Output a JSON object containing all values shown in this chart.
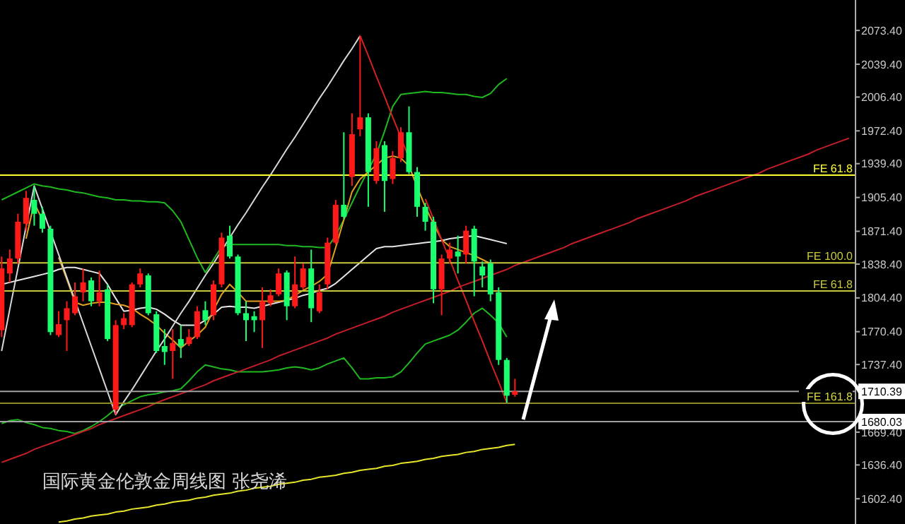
{
  "chart_data": {
    "type": "candlestick",
    "title": "国际黄金伦敦金周线图 张尧浠",
    "categories": [
      null,
      null,
      null,
      null,
      null,
      null,
      null,
      null,
      null,
      null,
      null,
      null,
      null,
      null,
      null,
      null,
      null,
      null,
      null,
      null,
      null,
      null,
      null,
      null,
      null,
      null,
      null,
      null,
      null,
      null,
      null,
      null,
      null,
      null,
      null,
      null,
      null,
      null,
      null,
      null,
      null,
      null,
      null,
      null,
      null,
      null,
      null,
      null,
      null,
      null,
      null,
      null,
      null,
      null,
      null,
      null,
      null,
      null,
      null,
      null,
      null,
      null,
      null,
      null,
      null,
      null,
      null,
      null,
      null,
      null,
      null,
      null,
      null,
      null,
      null,
      null,
      null,
      null,
      null,
      null,
      null,
      null,
      null,
      null,
      null,
      null,
      null,
      null,
      null,
      null,
      null,
      null,
      null,
      null,
      null,
      null,
      null,
      null,
      null,
      null,
      null,
      null,
      null,
      null,
      null
    ],
    "ohlc": [
      [
        1772,
        1846,
        1765,
        1834
      ],
      [
        1829,
        1853,
        1820,
        1844
      ],
      [
        1844,
        1889,
        1839,
        1881
      ],
      [
        1879,
        1912,
        1872,
        1905
      ],
      [
        1903,
        1917,
        1877,
        1889
      ],
      [
        1889,
        1896,
        1870,
        1874
      ],
      [
        1874,
        1877,
        1767,
        1770
      ],
      [
        1767,
        1791,
        1765,
        1778
      ],
      [
        1782,
        1801,
        1751,
        1794
      ],
      [
        1789,
        1820,
        1787,
        1806
      ],
      [
        1810,
        1834,
        1801,
        1820
      ],
      [
        1822,
        1825,
        1796,
        1801
      ],
      [
        1801,
        1832,
        1796,
        1810
      ],
      [
        1813,
        1818,
        1761,
        1763
      ],
      [
        1692,
        1782,
        1687,
        1777
      ],
      [
        1777,
        1789,
        1773,
        1784
      ],
      [
        1777,
        1820,
        1775,
        1818
      ],
      [
        1818,
        1834,
        1815,
        1829
      ],
      [
        1827,
        1829,
        1787,
        1789
      ],
      [
        1788,
        1791,
        1749,
        1751
      ],
      [
        1756,
        1773,
        1737,
        1750
      ],
      [
        1751,
        1773,
        1723,
        1759
      ],
      [
        1763,
        1777,
        1744,
        1756
      ],
      [
        1758,
        1773,
        1756,
        1765
      ],
      [
        1765,
        1796,
        1763,
        1791
      ],
      [
        1792,
        1801,
        1777,
        1782
      ],
      [
        1787,
        1822,
        1782,
        1818
      ],
      [
        1818,
        1870,
        1815,
        1865
      ],
      [
        1867,
        1877,
        1844,
        1846
      ],
      [
        1846,
        1848,
        1787,
        1789
      ],
      [
        1789,
        1801,
        1761,
        1782
      ],
      [
        1786,
        1791,
        1770,
        1782
      ],
      [
        1782,
        1815,
        1754,
        1801
      ],
      [
        1799,
        1813,
        1796,
        1807
      ],
      [
        1808,
        1834,
        1806,
        1829
      ],
      [
        1830,
        1832,
        1782,
        1796
      ],
      [
        1796,
        1846,
        1794,
        1818
      ],
      [
        1815,
        1839,
        1813,
        1834
      ],
      [
        1834,
        1853,
        1780,
        1794
      ],
      [
        1791,
        1818,
        1789,
        1810
      ],
      [
        1818,
        1865,
        1813,
        1860
      ],
      [
        1860,
        1903,
        1858,
        1898
      ],
      [
        1898,
        1971,
        1884,
        1886
      ],
      [
        1926,
        1990,
        1917,
        1969
      ],
      [
        1974,
        2068,
        1967,
        1986
      ],
      [
        1986,
        1990,
        1896,
        1931
      ],
      [
        1922,
        1962,
        1919,
        1955
      ],
      [
        1958,
        1962,
        1891,
        1922
      ],
      [
        1924,
        1952,
        1919,
        1945
      ],
      [
        1945,
        1976,
        1941,
        1971
      ],
      [
        1971,
        1997,
        1929,
        1931
      ],
      [
        1931,
        1936,
        1886,
        1896
      ],
      [
        1896,
        1900,
        1872,
        1881
      ],
      [
        1881,
        1886,
        1799,
        1813
      ],
      [
        1813,
        1848,
        1787,
        1844
      ],
      [
        1844,
        1860,
        1839,
        1853
      ],
      [
        1851,
        1867,
        1829,
        1846
      ],
      [
        1848,
        1877,
        1839,
        1872
      ],
      [
        1874,
        1877,
        1806,
        1841
      ],
      [
        1836,
        1841,
        1815,
        1827
      ],
      [
        1839,
        1843,
        1801,
        1808
      ],
      [
        1810,
        1815,
        1737,
        1742
      ],
      [
        1742,
        1744,
        1699,
        1706
      ],
      [
        1707,
        1723,
        1705,
        1710.39
      ],
      null,
      null,
      null,
      null,
      null,
      null,
      null,
      null,
      null,
      null,
      null,
      null,
      null,
      null,
      null,
      null,
      null,
      null,
      null,
      null,
      null,
      null,
      null,
      null,
      null,
      null,
      null,
      null,
      null,
      null,
      null,
      null,
      null,
      null,
      null,
      null,
      null,
      null,
      null,
      null,
      null
    ],
    "colors": [
      "#ff1a1a",
      "#ff1a1a",
      "#ff1a1a",
      "#ff1a1a",
      "#1aff6e",
      "#1aff6e",
      "#1aff6e",
      "#ff1a1a",
      "#ff1a1a",
      "#ff1a1a",
      "#ff1a1a",
      "#1aff6e",
      "#ff1a1a",
      "#1aff6e",
      "#ff1a1a",
      "#ff1a1a",
      "#ff1a1a",
      "#ff1a1a",
      "#1aff6e",
      "#1aff6e",
      "#1aff6e",
      "#ff1a1a",
      "#1aff6e",
      "#ff1a1a",
      "#ff1a1a",
      "#1aff6e",
      "#ff1a1a",
      "#ff1a1a",
      "#1aff6e",
      "#1aff6e",
      "#1aff6e",
      "#1aff6e",
      "#ff1a1a",
      "#ff1a1a",
      "#ff1a1a",
      "#1aff6e",
      "#ff1a1a",
      "#ff1a1a",
      "#1aff6e",
      "#ff1a1a",
      "#ff1a1a",
      "#ff1a1a",
      "#1aff6e",
      "#ff1a1a",
      "#ff1a1a",
      "#1aff6e",
      "#ff1a1a",
      "#1aff6e",
      "#ff1a1a",
      "#ff1a1a",
      "#1aff6e",
      "#1aff6e",
      "#1aff6e",
      "#1aff6e",
      "#ff1a1a",
      "#ff1a1a",
      "#1aff6e",
      "#ff1a1a",
      "#1aff6e",
      "#1aff6e",
      "#1aff6e",
      "#1aff6e",
      "#1aff6e",
      "#ff1a1a",
      null,
      null,
      null,
      null,
      null,
      null,
      null,
      null,
      null,
      null,
      null,
      null,
      null,
      null,
      null,
      null,
      null,
      null,
      null,
      null,
      null,
      null,
      null,
      null,
      null,
      null,
      null,
      null,
      null,
      null,
      null,
      null,
      null,
      null,
      null,
      null,
      null,
      null,
      null,
      null,
      null
    ],
    "series": [
      {
        "type": "line",
        "color": "#1fb81f",
        "values": [
          1903,
          1907,
          1911,
          1915,
          1919,
          1917,
          1916,
          1914,
          1913,
          1911,
          1910,
          1908,
          1906,
          1905,
          1903,
          1903,
          1902,
          1902,
          1901,
          1901,
          1900,
          1892,
          1881,
          1863,
          1845,
          1830,
          1843,
          1856,
          1858,
          1858,
          1858,
          1858,
          1858,
          1858,
          1858,
          1857,
          1857,
          1856,
          1856,
          1855,
          1855,
          1867,
          1883,
          1900,
          1917,
          1933,
          1949,
          1972,
          1997,
          2009,
          2010,
          2011,
          2012,
          2011,
          2011,
          2010,
          2009,
          2009,
          2007,
          2006,
          2010,
          2019,
          2025,
          null,
          null,
          null,
          null,
          null,
          null,
          null,
          null,
          null,
          null,
          null,
          null,
          null,
          null,
          null,
          null,
          null,
          null,
          null,
          null,
          null,
          null,
          null,
          null,
          null,
          null,
          null,
          null,
          null,
          null,
          null,
          null,
          null,
          null,
          null,
          null,
          null,
          null,
          null,
          null,
          null,
          null
        ]
      },
      {
        "type": "line",
        "color": "#1fb81f",
        "values": [
          1678,
          1681,
          1682,
          1679,
          1677,
          1674,
          1673,
          1671,
          1670,
          1668,
          1671,
          1675,
          1680,
          1686,
          1693,
          1697,
          1701,
          1705,
          1707,
          1708,
          1710,
          1711,
          1713,
          1721,
          1730,
          1737,
          1735,
          1733,
          1732,
          1730,
          1730,
          1730,
          1730,
          1731,
          1732,
          1734,
          1735,
          1734,
          1732,
          1734,
          1738,
          1741,
          1744,
          1734,
          1723,
          1723,
          1724,
          1724,
          1725,
          1730,
          1739,
          1749,
          1758,
          1761,
          1764,
          1767,
          1772,
          1780,
          1789,
          1794,
          1787,
          1779,
          1765,
          null,
          null,
          null,
          null,
          null,
          null,
          null,
          null,
          null,
          null,
          null,
          null,
          null,
          null,
          null,
          null,
          null,
          null,
          null,
          null,
          null,
          null,
          null,
          null,
          null,
          null,
          null,
          null,
          null,
          null,
          null,
          null,
          null,
          null,
          null,
          null,
          null,
          null,
          null,
          null,
          null,
          null
        ]
      },
      {
        "type": "line",
        "color": "#e6e6e6",
        "values": [
          1818,
          1820,
          1822,
          1824,
          1826,
          1828,
          1830,
          1833,
          1835,
          1835,
          1833,
          1831,
          1829,
          1818,
          1804,
          1791,
          1792,
          1794,
          1795,
          1793,
          1788,
          1782,
          1777,
          1777,
          1777,
          1782,
          1788,
          1795,
          1796,
          1795,
          1795,
          1794,
          1796,
          1798,
          1800,
          1802,
          1804,
          1807,
          1809,
          1812,
          1814,
          1819,
          1826,
          1833,
          1840,
          1847,
          1854,
          1856,
          1856,
          1857,
          1858,
          1859,
          1860,
          1861,
          1862,
          1864,
          1865,
          1866,
          1867,
          1865,
          1863,
          1861,
          1859,
          null,
          null,
          null,
          null,
          null,
          null,
          null,
          null,
          null,
          null,
          null,
          null,
          null,
          null,
          null,
          null,
          null,
          null,
          null,
          null,
          null,
          null,
          null,
          null,
          null,
          null,
          null,
          null,
          null,
          null,
          null,
          null,
          null,
          null,
          null,
          null,
          null,
          null,
          null,
          null,
          null,
          null
        ]
      },
      {
        "type": "line",
        "color": "#e0a020",
        "values": [
          null,
          null,
          null,
          1864,
          1900,
          1883,
          null,
          1845,
          1823,
          1800,
          1797,
          1799,
          1800,
          1800,
          1798,
          1797,
          1794,
          1788,
          1783,
          1777,
          1769,
          1762,
          1754,
          1761,
          1767,
          1775,
          1792,
          1808,
          1818,
          1810,
          1801,
          1801,
          1801,
          1801,
          1801,
          1802,
          1807,
          1812,
          1816,
          1821,
          1828,
          1855,
          1883,
          1911,
          1924,
          1931,
          1938,
          1945,
          1947,
          1945,
          1937,
          1916,
          1896,
          1879,
          1863,
          1856,
          1853,
          1850,
          1847,
          1843,
          1839,
          null,
          null,
          null,
          null,
          null,
          null,
          null,
          null,
          null,
          null,
          null,
          null,
          null,
          null,
          null,
          null,
          null,
          null,
          null,
          null,
          null,
          null,
          null,
          null,
          null,
          null,
          null,
          null,
          null,
          null,
          null,
          null,
          null,
          null,
          null,
          null,
          null,
          null,
          null,
          null,
          null,
          null,
          null,
          null
        ]
      },
      {
        "type": "line",
        "color": "#e6e62a",
        "values": [
          null,
          null,
          null,
          null,
          null,
          null,
          null,
          1579,
          1580,
          1582,
          1583,
          1585,
          1586,
          1587,
          1589,
          1590,
          1592,
          1593,
          1594,
          1596,
          1597,
          1599,
          1600,
          1601,
          1603,
          1604,
          1606,
          1607,
          1608,
          1610,
          1611,
          1613,
          1614,
          1615,
          1617,
          1618,
          1619,
          1621,
          1622,
          1624,
          1625,
          1626,
          1628,
          1629,
          1631,
          1632,
          1633,
          1635,
          1636,
          1638,
          1639,
          1640,
          1642,
          1643,
          1645,
          1646,
          1647,
          1649,
          1650,
          1652,
          1653,
          1654,
          1656,
          1657,
          null,
          null,
          null,
          null,
          null,
          null,
          null,
          null,
          null,
          null,
          null,
          null,
          null,
          null,
          null,
          null,
          null,
          null,
          null,
          null,
          null,
          null,
          null,
          null,
          null,
          null,
          null,
          null,
          null,
          null,
          null,
          null,
          null,
          null,
          null,
          null,
          null,
          null,
          null,
          null,
          null
        ]
      },
      {
        "type": "line",
        "color": "#c41e2a",
        "values": [
          1639,
          1642,
          1645,
          1648,
          1652,
          1655,
          1658,
          1661,
          1664,
          1667,
          1670,
          1673,
          1677,
          1680,
          1683,
          1686,
          1689,
          1692,
          1695,
          1699,
          1702,
          1705,
          1708,
          1711,
          1714,
          1717,
          1721,
          1724,
          1727,
          1730,
          1733,
          1736,
          1739,
          1742,
          1746,
          1749,
          1752,
          1755,
          1758,
          1761,
          1764,
          1768,
          1771,
          1774,
          1777,
          1780,
          1783,
          1786,
          1790,
          1793,
          1796,
          1799,
          1802,
          1805,
          1808,
          1811,
          1815,
          1818,
          1821,
          1824,
          1827,
          1830,
          1833,
          1837,
          1840,
          1843,
          1846,
          1849,
          1852,
          1855,
          1859,
          1862,
          1865,
          1868,
          1871,
          1874,
          1877,
          1880,
          1884,
          1887,
          1890,
          1893,
          1896,
          1899,
          1902,
          1906,
          1909,
          1912,
          1915,
          1918,
          1921,
          1924,
          1927,
          1930,
          1934,
          1937,
          1940,
          1943,
          1946,
          1949,
          1953,
          1956,
          1959,
          1962,
          1965
        ]
      },
      {
        "type": "line",
        "color": "#d8d8d8",
        "values": [
          1751,
          1793,
          1834,
          1876,
          1917,
          1894,
          1871,
          1848,
          1825,
          1802,
          1779,
          1756,
          1733,
          1710,
          1687,
          1700,
          1712,
          1725,
          1738,
          1751,
          1763,
          1776,
          1789,
          1801,
          1814,
          1827,
          1839,
          1852,
          1865,
          1878,
          1890,
          1903,
          1916,
          1928,
          1941,
          1954,
          1966,
          1979,
          1992,
          2005,
          2017,
          2030,
          2043,
          2055,
          2068,
          null,
          null,
          null,
          null,
          null,
          null,
          null,
          null,
          null,
          null,
          null,
          null,
          null,
          null,
          null,
          null,
          null,
          null,
          null,
          null,
          null,
          null,
          null,
          null,
          null,
          null,
          null,
          null,
          null,
          null,
          null,
          null,
          null,
          null,
          null,
          null,
          null,
          null,
          null,
          null,
          null,
          null,
          null,
          null,
          null,
          null,
          null,
          null,
          null,
          null,
          null,
          null,
          null,
          null,
          null,
          null,
          null,
          null,
          null,
          null
        ]
      },
      {
        "type": "line",
        "color": "#d42020",
        "values": [
          null,
          null,
          null,
          null,
          null,
          null,
          null,
          null,
          null,
          null,
          null,
          null,
          null,
          null,
          null,
          null,
          null,
          null,
          null,
          null,
          null,
          null,
          null,
          null,
          null,
          null,
          null,
          null,
          null,
          null,
          null,
          null,
          null,
          null,
          null,
          null,
          null,
          null,
          null,
          null,
          null,
          null,
          null,
          null,
          2068,
          2048,
          2027,
          2007,
          1986,
          1966,
          1945,
          null,
          1904,
          1884,
          1863,
          1843,
          1822,
          1802,
          1781,
          1761,
          1740,
          1720,
          1699,
          null,
          null,
          null,
          null,
          null,
          null,
          null,
          null,
          null,
          null,
          null,
          null,
          null,
          null,
          null,
          null,
          null,
          null,
          null,
          null,
          null,
          null,
          null,
          null,
          null,
          null,
          null,
          null,
          null,
          null,
          null,
          null,
          null,
          null,
          null,
          null,
          null,
          null,
          null,
          null,
          null,
          null
        ]
      }
    ],
    "ylim": [
      1577,
      2104
    ],
    "yticks": [
      {
        "value": 1602.4,
        "label": "1602.40"
      },
      {
        "value": 1636.4,
        "label": "1636.40"
      },
      {
        "value": 1669.4,
        "label": "1669.40"
      },
      {
        "value": 1737.4,
        "label": "1737.40"
      },
      {
        "value": 1770.4,
        "label": "1770.40"
      },
      {
        "value": 1804.4,
        "label": "1804.40"
      },
      {
        "value": 1838.4,
        "label": "1838.40"
      },
      {
        "value": 1871.4,
        "label": "1871.40"
      },
      {
        "value": 1905.4,
        "label": "1905.40"
      },
      {
        "value": 1939.4,
        "label": "1939.40"
      },
      {
        "value": 1972.4,
        "label": "1972.40"
      },
      {
        "value": 2006.4,
        "label": "2006.40"
      },
      {
        "value": 2039.4,
        "label": "2039.40"
      },
      {
        "value": 2073.4,
        "label": "2073.40"
      }
    ],
    "tick_labels": "y",
    "ref_lines": [
      {
        "axis": "y",
        "value": 1927.8,
        "label": "FE 61.8",
        "color": "#ffff33"
      },
      {
        "axis": "y",
        "value": 1839.7,
        "label": "FE 100.0",
        "color": "#c8c83c"
      },
      {
        "axis": "y",
        "value": 1811.3,
        "label": "FE 61.8",
        "color": "#c8c83c"
      },
      {
        "axis": "y",
        "value": 1698.4,
        "label": "FE 161.8",
        "color": "#8c8c28"
      },
      {
        "axis": "y",
        "value": 1710.39,
        "label": "1710.39",
        "color": "#a0a0a0"
      },
      {
        "axis": "y",
        "value": 1680.03,
        "label": "1680.03",
        "color": "#a0a0a0"
      }
    ],
    "grid": false
  }
}
